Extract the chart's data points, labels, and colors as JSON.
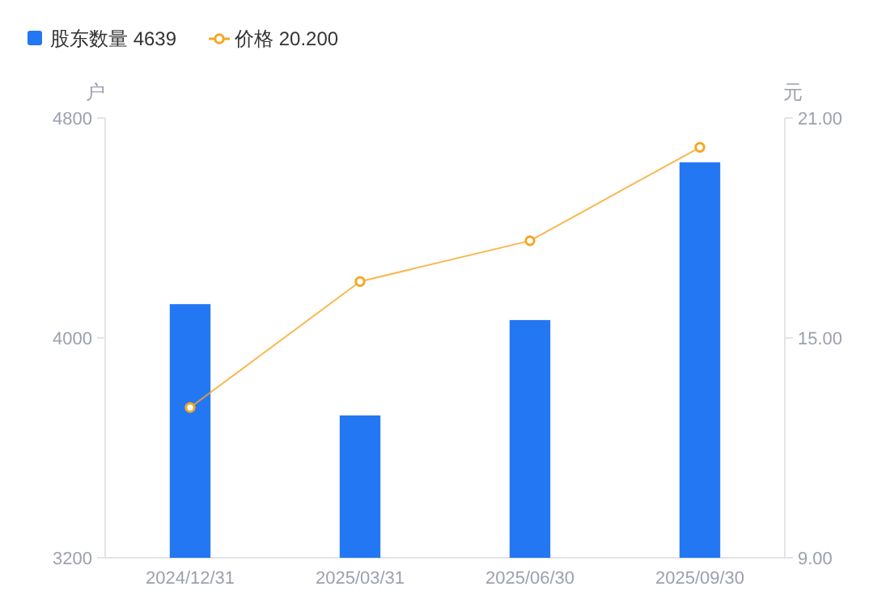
{
  "chart_data": {
    "type": "bar",
    "categories": [
      "2024/12/31",
      "2025/03/31",
      "2025/06/30",
      "2025/09/30"
    ],
    "series": [
      {
        "name": "股东数量 4639",
        "color": "#2477f3",
        "values": [
          4123,
          3718,
          4065,
          4639
        ]
      },
      {
        "name": "价格 20.200",
        "type": "line",
        "axis": "y2",
        "color": "#f5a623",
        "marker": "circle",
        "values": [
          13.1,
          16.54,
          17.65,
          20.2
        ]
      }
    ],
    "ylabel": "户",
    "y2label": "元",
    "ylim": [
      3200,
      4800
    ],
    "yticks": [
      3200,
      4000,
      4800
    ],
    "y2lim": [
      9,
      21
    ],
    "y2ticks": [
      {
        "value": 9,
        "label": "9.00"
      },
      {
        "value": 15,
        "label": "15.00"
      },
      {
        "value": 21,
        "label": "21.00"
      }
    ],
    "legend": "top left"
  }
}
